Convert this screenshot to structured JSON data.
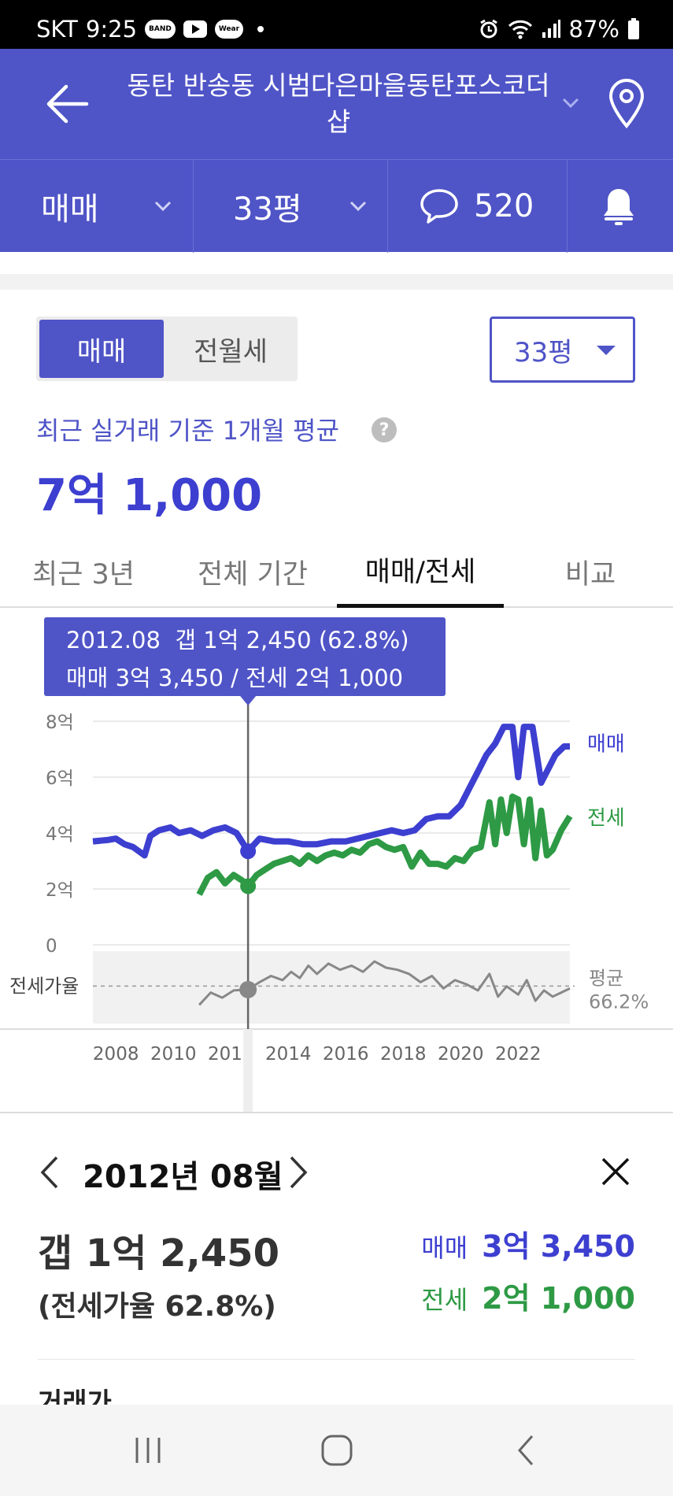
{
  "status_bar": {
    "carrier": "SKT",
    "time": "9:25",
    "app_badges": [
      "BAND",
      "Wear"
    ],
    "battery": "87%"
  },
  "header": {
    "title": "동탄 반송동 시범다은마을동탄포스코더샵",
    "icons": [
      "back-arrow-icon",
      "chevron-down-icon",
      "location-pin-icon"
    ]
  },
  "subbar": {
    "trade_type": "매매",
    "size": "33평",
    "comment_count": "520",
    "icons": [
      "chevron-down-icon",
      "speech-bubble-icon",
      "bell-icon"
    ]
  },
  "toggle": {
    "active": "매매",
    "inactive": "전월세"
  },
  "size_select": "33평",
  "summary": {
    "label": "최근 실거래 기준 1개월 평균",
    "help": "?",
    "value": "7억 1,000"
  },
  "tabs": [
    {
      "label": "최근 3년",
      "active": false
    },
    {
      "label": "전체 기간",
      "active": false
    },
    {
      "label": "매매/전세",
      "active": true
    },
    {
      "label": "비교",
      "active": false
    }
  ],
  "tooltip": {
    "line1": "2012.08  갭 1억 2,450 (62.8%)",
    "line2": "매매 3억 3,450 / 전세 2억 1,000"
  },
  "chart_data": {
    "type": "line",
    "y_tick_labels": [
      "8억",
      "6억",
      "4억",
      "2억",
      "0"
    ],
    "ylim": [
      0,
      8
    ],
    "x_tick_labels": [
      "2008",
      "2010",
      "2012",
      "2014",
      "2016",
      "2018",
      "2020",
      "2022"
    ],
    "xlim": [
      2007.2,
      2023.8
    ],
    "selected_x": 2012.6,
    "grid": true,
    "legend_placement": "right",
    "series": [
      {
        "name": "매매",
        "color": "#3d3fd0",
        "x": [
          2007.2,
          2007.7,
          2008.0,
          2008.3,
          2008.6,
          2009.0,
          2009.2,
          2009.5,
          2009.9,
          2010.2,
          2010.6,
          2011.0,
          2011.4,
          2011.8,
          2012.2,
          2012.6,
          2013.0,
          2013.5,
          2014.0,
          2014.5,
          2015.0,
          2015.5,
          2016.0,
          2016.4,
          2016.8,
          2017.2,
          2017.6,
          2018.0,
          2018.4,
          2018.8,
          2019.2,
          2019.6,
          2020.0,
          2020.3,
          2020.6,
          2020.9,
          2021.2,
          2021.5,
          2021.8,
          2022.0,
          2022.2,
          2022.5,
          2022.8,
          2023.0,
          2023.3,
          2023.6,
          2023.8
        ],
        "y": [
          3.7,
          3.75,
          3.8,
          3.6,
          3.5,
          3.2,
          3.9,
          4.1,
          4.2,
          4.0,
          4.1,
          3.9,
          4.1,
          4.2,
          4.0,
          3.35,
          3.8,
          3.7,
          3.7,
          3.6,
          3.6,
          3.7,
          3.7,
          3.8,
          3.9,
          4.0,
          4.1,
          4.0,
          4.1,
          4.5,
          4.6,
          4.6,
          5.0,
          5.6,
          6.2,
          6.8,
          7.2,
          7.8,
          7.8,
          6.0,
          7.8,
          7.8,
          5.8,
          6.2,
          6.8,
          7.1,
          7.1
        ]
      },
      {
        "name": "전세",
        "color": "#2e9a45",
        "x": [
          2010.9,
          2011.2,
          2011.5,
          2011.8,
          2012.1,
          2012.4,
          2012.6,
          2012.9,
          2013.2,
          2013.5,
          2013.8,
          2014.1,
          2014.4,
          2014.7,
          2015.0,
          2015.3,
          2015.6,
          2015.9,
          2016.2,
          2016.5,
          2016.8,
          2017.1,
          2017.4,
          2017.7,
          2018.0,
          2018.3,
          2018.6,
          2018.9,
          2019.2,
          2019.5,
          2019.8,
          2020.1,
          2020.4,
          2020.7,
          2021.0,
          2021.2,
          2021.4,
          2021.6,
          2021.8,
          2022.0,
          2022.2,
          2022.4,
          2022.6,
          2022.8,
          2023.0,
          2023.2,
          2023.5,
          2023.8
        ],
        "y": [
          1.8,
          2.4,
          2.6,
          2.2,
          2.5,
          2.3,
          2.1,
          2.5,
          2.7,
          2.9,
          3.0,
          3.1,
          2.9,
          3.2,
          3.0,
          3.2,
          3.3,
          3.2,
          3.4,
          3.3,
          3.6,
          3.7,
          3.5,
          3.4,
          3.5,
          2.8,
          3.3,
          2.9,
          2.9,
          2.8,
          3.1,
          3.0,
          3.4,
          3.5,
          5.1,
          3.6,
          5.2,
          4.0,
          5.3,
          5.2,
          3.6,
          5.2,
          3.1,
          4.8,
          3.2,
          3.4,
          4.1,
          4.6
        ]
      }
    ],
    "ratio_series": {
      "label": "전세가율",
      "avg_label_line1": "평균",
      "avg_label_line2": "66.2%",
      "average": 66.2,
      "x": [
        2010.9,
        2011.3,
        2011.7,
        2012.1,
        2012.6,
        2013.0,
        2013.4,
        2013.8,
        2014.1,
        2014.4,
        2014.7,
        2015.0,
        2015.4,
        2015.8,
        2016.2,
        2016.6,
        2017.0,
        2017.4,
        2017.8,
        2018.2,
        2018.6,
        2019.0,
        2019.4,
        2019.8,
        2020.2,
        2020.6,
        2021.0,
        2021.3,
        2021.6,
        2022.0,
        2022.3,
        2022.6,
        2022.9,
        2023.2,
        2023.5,
        2023.8
      ],
      "y": [
        48,
        60,
        55,
        62,
        62.8,
        70,
        76,
        72,
        80,
        74,
        86,
        78,
        88,
        82,
        86,
        80,
        90,
        84,
        82,
        78,
        70,
        76,
        64,
        72,
        68,
        62,
        78,
        56,
        66,
        58,
        72,
        52,
        62,
        56,
        60,
        64
      ],
      "ylim": [
        30,
        100
      ]
    }
  },
  "detail": {
    "date": "2012년 08월",
    "gap": "갭 1억 2,450",
    "ratio": "(전세가율 62.8%)",
    "sale_label": "매매",
    "sale_value": "3억 3,450",
    "jeonse_label": "전세",
    "jeonse_value": "2억 1,000",
    "peek_text": "거래가"
  },
  "colors": {
    "brand": "#4f54c7",
    "sale": "#3d3fd0",
    "jeonse": "#2e9a45",
    "ratio": "#888888"
  }
}
